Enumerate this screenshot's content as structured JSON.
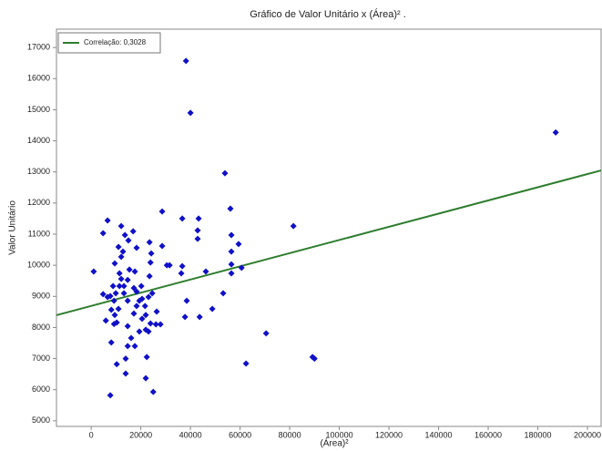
{
  "chart_data": {
    "type": "scatter",
    "title": "Gráfico de Valor Unitário x (Área)² .",
    "x_label": "(Área)²",
    "y_label": "Valor Unitário",
    "color": "#1010c8",
    "x": [
      1000,
      4800,
      6600,
      7700,
      38200,
      40000,
      53900,
      187200,
      81500,
      70500,
      89200,
      90000,
      62400,
      56100,
      59400,
      60600,
      56500,
      56500,
      56500,
      56500,
      53200,
      48800,
      46200,
      43700,
      43300,
      42900,
      42900,
      36700,
      36700,
      36300,
      38500,
      37800,
      28600,
      31600,
      30500,
      28600,
      23500,
      24200,
      23900,
      23500,
      24600,
      23900,
      26100,
      25000,
      22000,
      22400,
      26400,
      27900,
      23100,
      16900,
      12800,
      12100,
      11000,
      9500,
      11400,
      12100,
      13200,
      13200,
      14700,
      9900,
      9200,
      8100,
      7700,
      9500,
      10300,
      9200,
      8100,
      5900,
      11000,
      14700,
      16100,
      17600,
      14700,
      13900,
      10300,
      13900,
      18300,
      19400,
      18300,
      17200,
      15400,
      17600,
      18300,
      15000,
      13600,
      12100,
      4800,
      6600,
      20500,
      20500,
      22000,
      21700,
      19400,
      22000,
      23100,
      17200,
      14700,
      20200,
      11400,
      8800
    ],
    "y": [
      9800,
      11030,
      11440,
      5820,
      16570,
      14900,
      12960,
      14270,
      11260,
      7810,
      7050,
      7000,
      6840,
      11820,
      10680,
      9920,
      10970,
      10440,
      10030,
      9740,
      9100,
      8600,
      9800,
      8340,
      11500,
      11120,
      10850,
      11500,
      9970,
      9740,
      8860,
      8340,
      11730,
      10000,
      10000,
      10620,
      10740,
      10380,
      10090,
      9650,
      9100,
      8130,
      8100,
      5930,
      6370,
      7050,
      8510,
      8100,
      8980,
      11090,
      10440,
      11260,
      10590,
      10060,
      9740,
      9560,
      9330,
      9100,
      8860,
      9100,
      8860,
      8570,
      9010,
      8400,
      8160,
      8110,
      7520,
      8220,
      8600,
      8040,
      7660,
      7400,
      7400,
      7000,
      6820,
      6520,
      8690,
      8860,
      9150,
      9270,
      9860,
      9800,
      10560,
      10800,
      10970,
      10270,
      9070,
      8980,
      8280,
      8920,
      8400,
      8690,
      7870,
      7930,
      7870,
      8450,
      9530,
      9330,
      9330,
      9330
    ],
    "fit": {
      "name": "Correlação: 0,3028",
      "color": "#2e7d2e",
      "x": [
        -14000,
        205500
      ],
      "y": [
        8396,
        13049
      ]
    },
    "xlim": [
      -14000,
      205500
    ],
    "ylim": [
      4820,
      17590
    ],
    "xticks": [
      0,
      20000,
      40000,
      60000,
      80000,
      100000,
      120000,
      140000,
      160000,
      180000,
      200000
    ],
    "yticks": [
      5000,
      6000,
      7000,
      8000,
      9000,
      10000,
      11000,
      12000,
      13000,
      14000,
      15000,
      16000,
      17000
    ]
  }
}
